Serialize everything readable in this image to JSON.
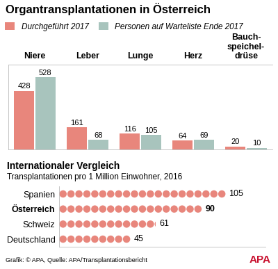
{
  "chart_data": [
    {
      "type": "bar",
      "title": "Organtransplantationen in Österreich",
      "categories": [
        "Niere",
        "Leber",
        "Lunge",
        "Herz",
        "Bauch-\nspeichel-\ndrüse"
      ],
      "series": [
        {
          "name": "Durchgeführt 2017",
          "color": "#e8867c",
          "values": [
            428,
            161,
            116,
            64,
            20
          ]
        },
        {
          "name": "Personen auf Warteliste Ende 2017",
          "color": "#a8c4bd",
          "values": [
            528,
            68,
            105,
            69,
            10
          ]
        }
      ],
      "ylim": [
        0,
        620
      ],
      "legend": "upper left",
      "data_labels": true,
      "tick_labels": "x"
    },
    {
      "type": "pictogram",
      "title": "Internationaler Vergleich",
      "subtitle": "Transplantationen pro 1 Million Einwohner, 2016",
      "orientation": "horizontal",
      "categories": [
        "Spanien",
        "Österreich",
        "Schweiz",
        "Deutschland"
      ],
      "values": [
        105,
        90,
        61,
        45
      ],
      "color": "#e8867c",
      "xlim": [
        0,
        130
      ],
      "data_labels": true,
      "tick_labels": "y"
    }
  ],
  "source": "Grafik: © APA, Quelle: APA/Transplantationsbericht",
  "logo": "APA"
}
